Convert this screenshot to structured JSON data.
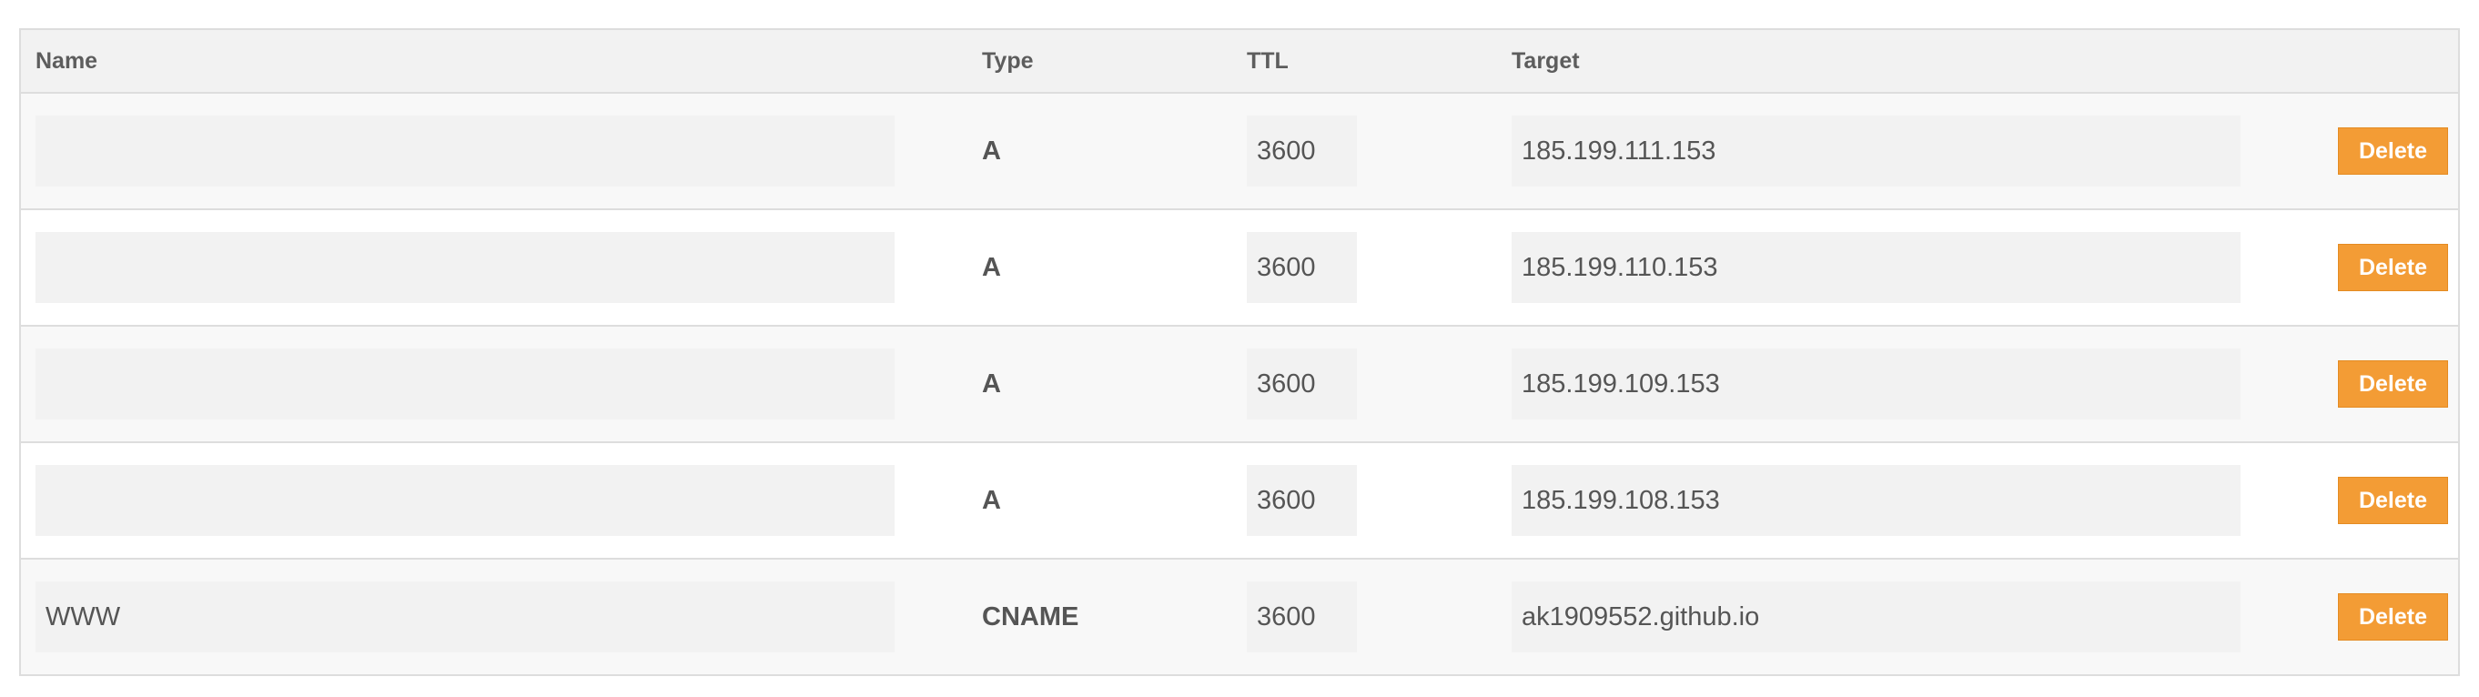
{
  "columns": {
    "name": "Name",
    "type": "Type",
    "ttl": "TTL",
    "target": "Target"
  },
  "records": [
    {
      "name": "",
      "type": "A",
      "ttl": "3600",
      "target": "185.199.111.153",
      "action": "Delete"
    },
    {
      "name": "",
      "type": "A",
      "ttl": "3600",
      "target": "185.199.110.153",
      "action": "Delete"
    },
    {
      "name": "",
      "type": "A",
      "ttl": "3600",
      "target": "185.199.109.153",
      "action": "Delete"
    },
    {
      "name": "",
      "type": "A",
      "ttl": "3600",
      "target": "185.199.108.153",
      "action": "Delete"
    },
    {
      "name": "WWW",
      "type": "CNAME",
      "ttl": "3600",
      "target": "ak1909552.github.io",
      "action": "Delete"
    }
  ],
  "colors": {
    "delete_button": "#f39c35",
    "header_background": "#f2f2f2",
    "field_background": "#f2f2f2",
    "border": "#dddddd"
  }
}
